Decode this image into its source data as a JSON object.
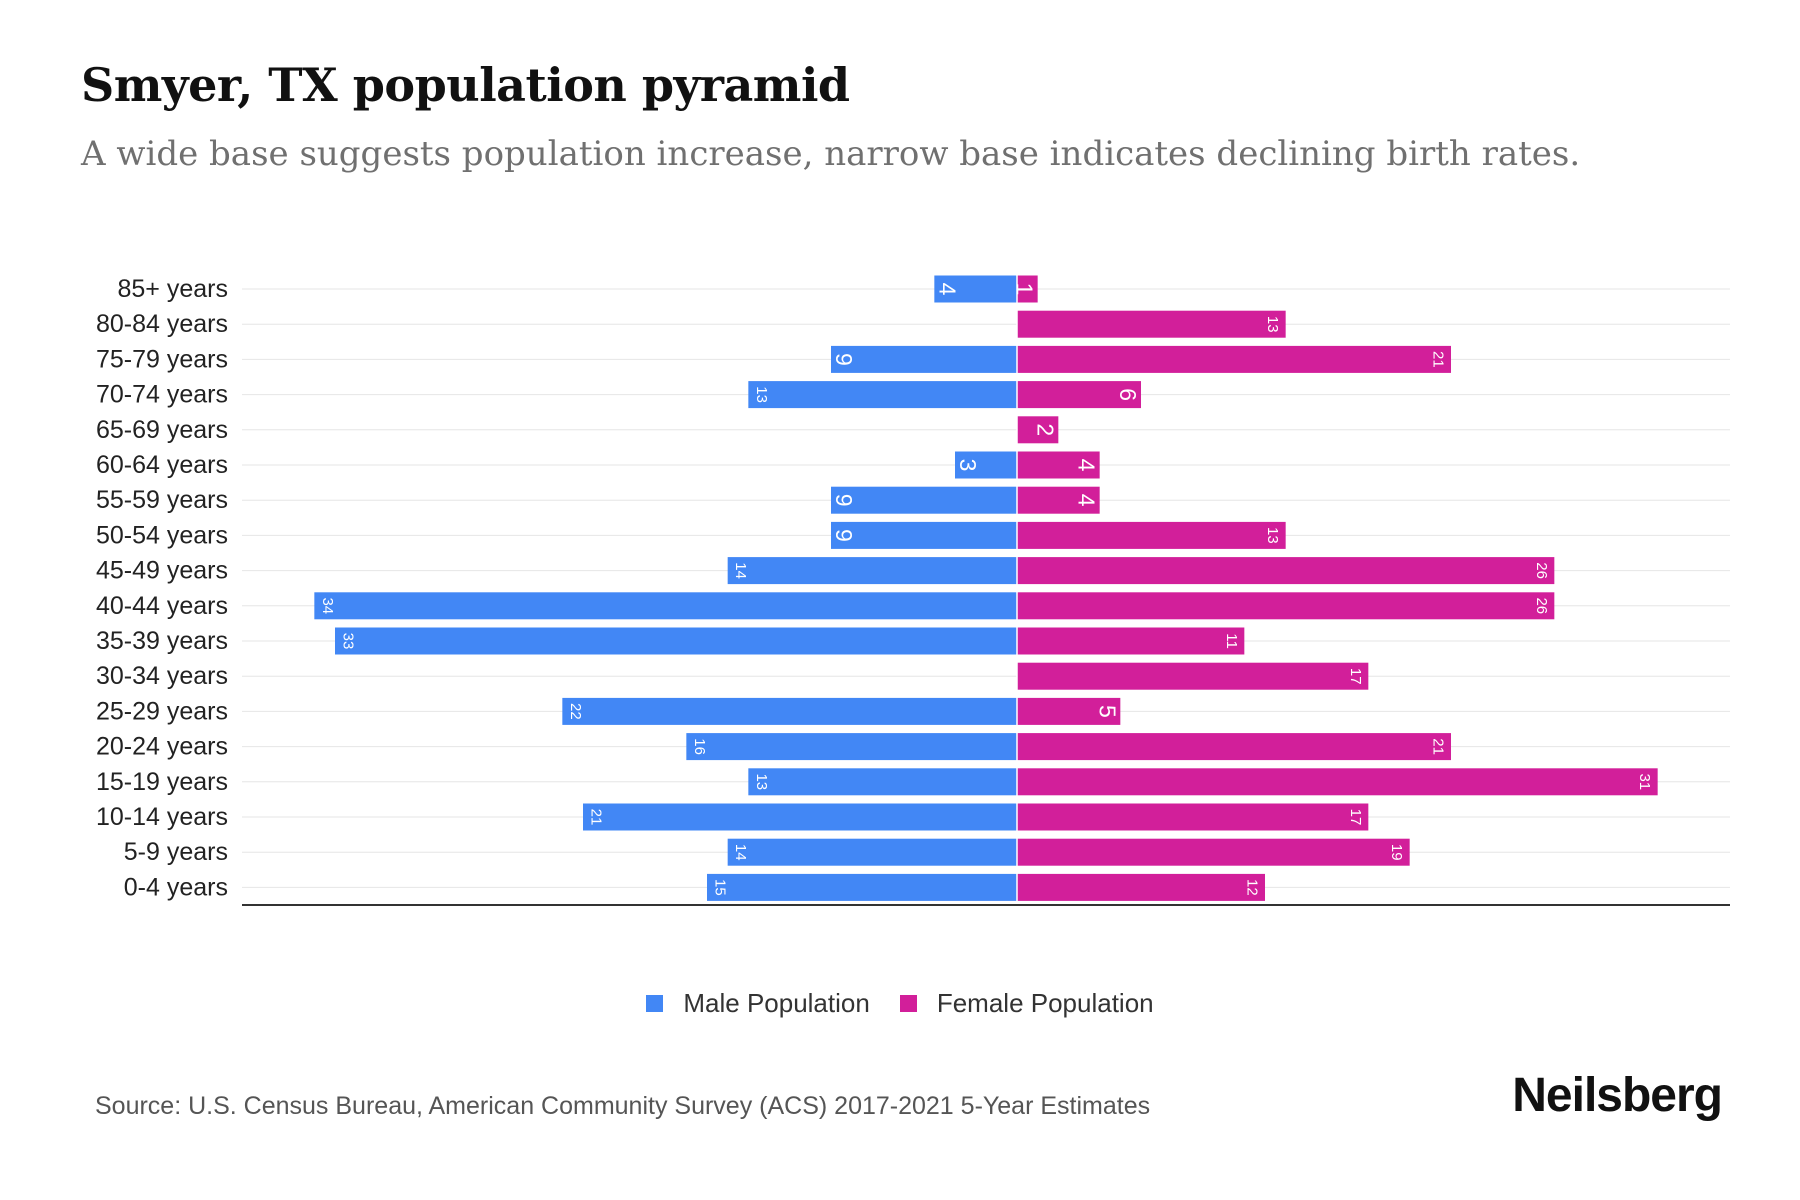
{
  "header": {
    "title": "Smyer, TX population pyramid",
    "subtitle": "A wide base suggests population increase, narrow base indicates declining birth rates."
  },
  "legend": {
    "male_label": "Male Population",
    "female_label": "Female Population"
  },
  "footer": {
    "source": "Source: U.S. Census Bureau, American Community Survey (ACS) 2017-2021 5-Year Estimates",
    "brand": "Neilsberg"
  },
  "colors": {
    "male": "#4287f5",
    "female": "#d21f9a",
    "grid": "#e6e6e6",
    "axis": "#333333"
  },
  "chart_data": {
    "type": "bar",
    "orientation": "horizontal-pyramid",
    "title": "Smyer, TX population pyramid",
    "categories": [
      "85+ years",
      "80-84 years",
      "75-79 years",
      "70-74 years",
      "65-69 years",
      "60-64 years",
      "55-59 years",
      "50-54 years",
      "45-49 years",
      "40-44 years",
      "35-39 years",
      "30-34 years",
      "25-29 years",
      "20-24 years",
      "15-19 years",
      "10-14 years",
      "5-9 years",
      "0-4 years"
    ],
    "series": [
      {
        "name": "Male Population",
        "values": [
          4,
          0,
          9,
          13,
          0,
          3,
          9,
          9,
          14,
          34,
          33,
          0,
          22,
          16,
          13,
          21,
          14,
          15
        ]
      },
      {
        "name": "Female Population",
        "values": [
          1,
          13,
          21,
          6,
          2,
          4,
          4,
          13,
          26,
          26,
          11,
          17,
          5,
          21,
          31,
          17,
          19,
          12
        ]
      }
    ],
    "xlim": [
      -37.5,
      34.5
    ],
    "grid": true,
    "legend_position": "bottom-center"
  }
}
